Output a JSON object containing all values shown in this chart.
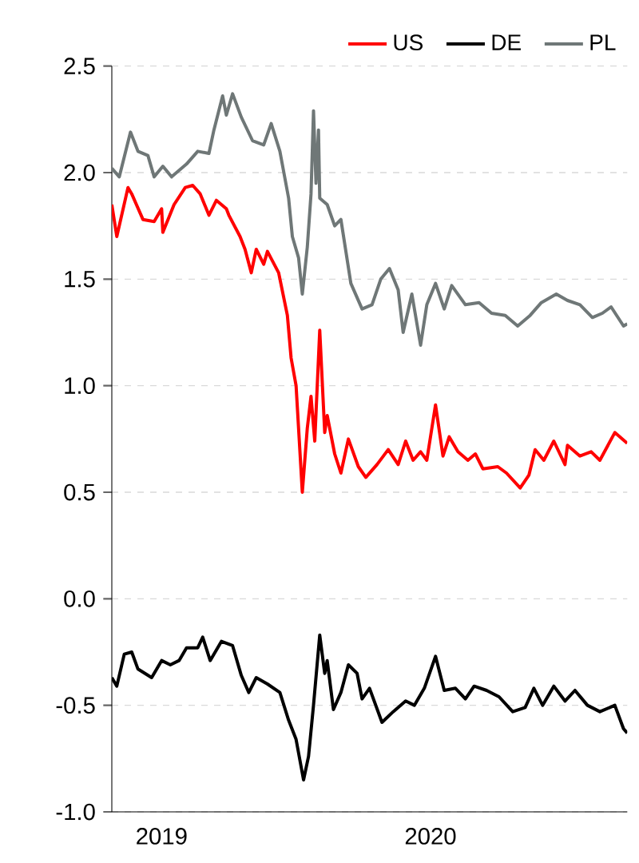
{
  "chart_data": {
    "type": "line",
    "legend": "top",
    "grid": "y",
    "marker": "none",
    "line_style": "solid",
    "xlim": [
      "2019-10-19",
      "2020-12-06"
    ],
    "xticks": [
      {
        "value": "2019-11-28",
        "label": "2019"
      },
      {
        "value": "2020-01-01",
        "label": null
      },
      {
        "value": "2020-07-01",
        "label": "2020"
      }
    ],
    "ylim": [
      -1.0,
      2.5
    ],
    "yticks": [
      {
        "value": -1.0,
        "label": "-1.0"
      },
      {
        "value": -0.5,
        "label": "-0.5"
      },
      {
        "value": 0,
        "label": "0.0"
      },
      {
        "value": 0.5,
        "label": "0.5"
      },
      {
        "value": 1.0,
        "label": "1.0"
      },
      {
        "value": 1.5,
        "label": "1.5"
      },
      {
        "value": 2.0,
        "label": "2.0"
      },
      {
        "value": 2.5,
        "label": "2.5"
      }
    ],
    "series": [
      {
        "name": "US",
        "color": "#ff0000",
        "x": [
          "2019-10-19",
          "2019-10-23",
          "2019-11-01",
          "2019-11-04",
          "2019-11-13",
          "2019-11-22",
          "2019-11-28",
          "2019-11-29",
          "2019-12-08",
          "2019-12-17",
          "2019-12-23",
          "2019-12-29",
          "2020-01-05",
          "2020-01-11",
          "2020-01-19",
          "2020-01-21",
          "2020-01-30",
          "2020-02-03",
          "2020-02-08",
          "2020-02-12",
          "2020-02-18",
          "2020-02-21",
          "2020-03-01",
          "2020-03-08",
          "2020-03-11",
          "2020-03-15",
          "2020-03-20",
          "2020-03-24",
          "2020-03-27",
          "2020-03-30",
          "2020-04-03",
          "2020-04-07",
          "2020-04-09",
          "2020-04-15",
          "2020-04-20",
          "2020-04-26",
          "2020-05-04",
          "2020-05-10",
          "2020-05-19",
          "2020-05-28",
          "2020-06-05",
          "2020-06-11",
          "2020-06-17",
          "2020-06-23",
          "2020-06-28",
          "2020-07-05",
          "2020-07-11",
          "2020-07-16",
          "2020-07-23",
          "2020-07-31",
          "2020-08-06",
          "2020-08-12",
          "2020-08-24",
          "2020-08-31",
          "2020-09-11",
          "2020-09-18",
          "2020-09-23",
          "2020-09-30",
          "2020-10-08",
          "2020-10-17",
          "2020-10-19",
          "2020-10-29",
          "2020-11-07",
          "2020-11-14",
          "2020-11-26",
          "2020-12-06"
        ],
        "values": [
          1.85,
          1.7,
          1.93,
          1.9,
          1.78,
          1.77,
          1.83,
          1.72,
          1.85,
          1.93,
          1.94,
          1.9,
          1.8,
          1.87,
          1.83,
          1.8,
          1.7,
          1.64,
          1.53,
          1.64,
          1.57,
          1.63,
          1.53,
          1.33,
          1.13,
          1.0,
          0.5,
          0.8,
          0.95,
          0.74,
          1.26,
          0.78,
          0.86,
          0.68,
          0.59,
          0.75,
          0.62,
          0.57,
          0.63,
          0.7,
          0.63,
          0.74,
          0.65,
          0.69,
          0.65,
          0.91,
          0.67,
          0.76,
          0.69,
          0.65,
          0.68,
          0.61,
          0.62,
          0.59,
          0.52,
          0.58,
          0.7,
          0.65,
          0.74,
          0.63,
          0.72,
          0.67,
          0.69,
          0.65,
          0.78,
          0.73
        ]
      },
      {
        "name": "DE",
        "color": "#000000",
        "x": [
          "2019-10-19",
          "2019-10-23",
          "2019-10-29",
          "2019-11-04",
          "2019-11-09",
          "2019-11-20",
          "2019-11-28",
          "2019-12-05",
          "2019-12-12",
          "2019-12-18",
          "2019-12-27",
          "2019-12-31",
          "2020-01-06",
          "2020-01-15",
          "2020-01-24",
          "2020-01-31",
          "2020-02-06",
          "2020-02-12",
          "2020-02-21",
          "2020-03-02",
          "2020-03-09",
          "2020-03-15",
          "2020-03-21",
          "2020-03-25",
          "2020-03-29",
          "2020-04-03",
          "2020-04-07",
          "2020-04-09",
          "2020-04-14",
          "2020-04-20",
          "2020-04-26",
          "2020-05-03",
          "2020-05-07",
          "2020-05-13",
          "2020-05-23",
          "2020-06-01",
          "2020-06-11",
          "2020-06-18",
          "2020-06-26",
          "2020-07-05",
          "2020-07-12",
          "2020-07-21",
          "2020-07-29",
          "2020-08-05",
          "2020-08-15",
          "2020-08-25",
          "2020-09-05",
          "2020-09-15",
          "2020-09-22",
          "2020-09-29",
          "2020-10-08",
          "2020-10-17",
          "2020-10-25",
          "2020-11-04",
          "2020-11-14",
          "2020-11-26",
          "2020-12-03",
          "2020-12-06"
        ],
        "values": [
          -0.37,
          -0.41,
          -0.26,
          -0.25,
          -0.33,
          -0.37,
          -0.29,
          -0.31,
          -0.29,
          -0.23,
          -0.23,
          -0.18,
          -0.29,
          -0.2,
          -0.22,
          -0.36,
          -0.44,
          -0.37,
          -0.4,
          -0.44,
          -0.57,
          -0.66,
          -0.85,
          -0.74,
          -0.5,
          -0.17,
          -0.35,
          -0.29,
          -0.52,
          -0.44,
          -0.31,
          -0.35,
          -0.47,
          -0.42,
          -0.58,
          -0.53,
          -0.48,
          -0.5,
          -0.42,
          -0.27,
          -0.43,
          -0.42,
          -0.47,
          -0.41,
          -0.43,
          -0.46,
          -0.53,
          -0.51,
          -0.42,
          -0.5,
          -0.41,
          -0.48,
          -0.43,
          -0.5,
          -0.53,
          -0.5,
          -0.61,
          -0.63
        ]
      },
      {
        "name": "PL",
        "color": "#6f7777",
        "x": [
          "2019-10-19",
          "2019-10-25",
          "2019-11-03",
          "2019-11-09",
          "2019-11-17",
          "2019-11-22",
          "2019-11-29",
          "2019-12-06",
          "2019-12-18",
          "2019-12-27",
          "2020-01-05",
          "2020-01-09",
          "2020-01-16",
          "2020-01-19",
          "2020-01-24",
          "2020-01-31",
          "2020-02-09",
          "2020-02-18",
          "2020-02-24",
          "2020-03-02",
          "2020-03-09",
          "2020-03-12",
          "2020-03-17",
          "2020-03-20",
          "2020-03-24",
          "2020-03-27",
          "2020-03-29",
          "2020-03-31",
          "2020-04-02",
          "2020-04-03",
          "2020-04-09",
          "2020-04-15",
          "2020-04-20",
          "2020-04-28",
          "2020-05-07",
          "2020-05-15",
          "2020-05-22",
          "2020-05-29",
          "2020-06-05",
          "2020-06-09",
          "2020-06-16",
          "2020-06-23",
          "2020-06-28",
          "2020-07-05",
          "2020-07-12",
          "2020-07-18",
          "2020-07-29",
          "2020-08-09",
          "2020-08-19",
          "2020-08-30",
          "2020-09-09",
          "2020-09-19",
          "2020-09-28",
          "2020-10-10",
          "2020-10-19",
          "2020-10-29",
          "2020-11-08",
          "2020-11-16",
          "2020-11-23",
          "2020-12-03",
          "2020-12-06"
        ],
        "values": [
          2.02,
          1.98,
          2.19,
          2.1,
          2.08,
          1.98,
          2.03,
          1.98,
          2.04,
          2.1,
          2.09,
          2.2,
          2.36,
          2.27,
          2.37,
          2.26,
          2.15,
          2.13,
          2.23,
          2.1,
          1.88,
          1.7,
          1.6,
          1.43,
          1.65,
          1.9,
          2.29,
          1.95,
          2.2,
          1.88,
          1.85,
          1.75,
          1.78,
          1.48,
          1.36,
          1.38,
          1.5,
          1.55,
          1.45,
          1.25,
          1.43,
          1.19,
          1.38,
          1.48,
          1.36,
          1.47,
          1.38,
          1.39,
          1.34,
          1.33,
          1.28,
          1.33,
          1.39,
          1.43,
          1.4,
          1.38,
          1.32,
          1.34,
          1.37,
          1.28,
          1.29
        ]
      }
    ]
  }
}
